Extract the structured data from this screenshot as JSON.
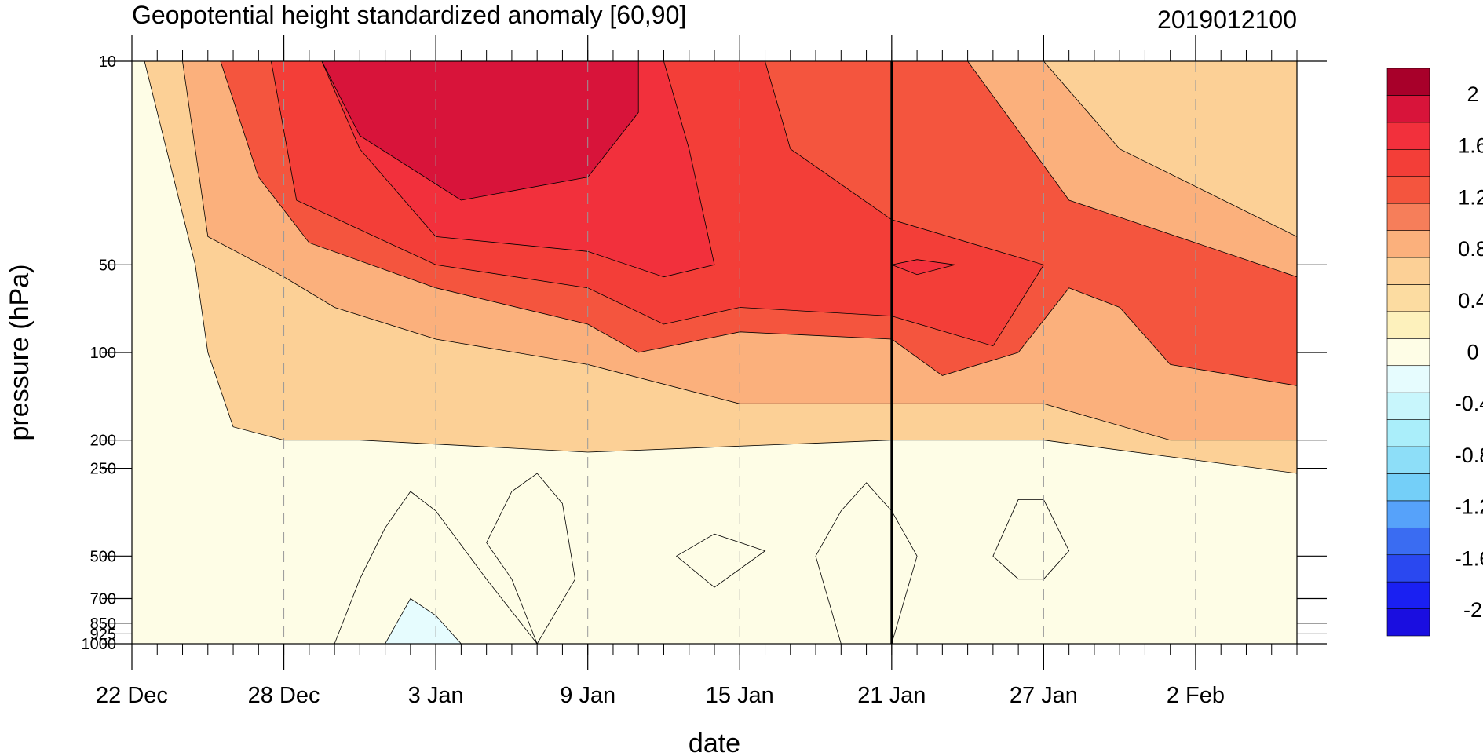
{
  "chart_data": {
    "type": "heatmap",
    "title": "Geopotential height standardized anomaly [60,90]",
    "right_title": "2019012100",
    "xlabel": "date",
    "ylabel": "pressure (hPa)",
    "y_scale": "log",
    "y_reversed": true,
    "ylim": [
      10,
      1000
    ],
    "x_start": "2018-12-22",
    "x_end": "2019-02-06",
    "x_ticks": [
      {
        "date": "2018-12-22",
        "label": "22 Dec"
      },
      {
        "date": "2018-12-28",
        "label": "28 Dec"
      },
      {
        "date": "2019-01-03",
        "label": "3 Jan"
      },
      {
        "date": "2019-01-09",
        "label": "9 Jan"
      },
      {
        "date": "2019-01-15",
        "label": "15 Jan"
      },
      {
        "date": "2019-01-21",
        "label": "21 Jan"
      },
      {
        "date": "2019-01-27",
        "label": "27 Jan"
      },
      {
        "date": "2019-02-02",
        "label": "2 Feb"
      }
    ],
    "y_ticks": [
      {
        "value": 10,
        "label": "10"
      },
      {
        "value": 50,
        "label": "50"
      },
      {
        "value": 100,
        "label": "100"
      },
      {
        "value": 200,
        "label": "200"
      },
      {
        "value": 250,
        "label": "250"
      },
      {
        "value": 500,
        "label": "500"
      },
      {
        "value": 700,
        "label": "700"
      },
      {
        "value": 850,
        "label": "850"
      },
      {
        "value": 925,
        "label": "925"
      },
      {
        "value": 1000,
        "label": "1000"
      }
    ],
    "analysis_date": "2019-01-21",
    "grid": {
      "vertical_dashed_at_major_ticks": true
    },
    "levels": [
      -2.2,
      -2,
      -1.8,
      -1.6,
      -1.4,
      -1.2,
      -1,
      -0.8,
      -0.6,
      -0.4,
      -0.2,
      0,
      0.2,
      0.4,
      0.6,
      0.8,
      1,
      1.2,
      1.4,
      1.6,
      1.8,
      2,
      2.2
    ],
    "colorbar_labels": [
      2,
      1.6,
      1.2,
      0.8,
      0.4,
      0,
      -0.4,
      -0.8,
      -1.2,
      -1.6,
      -2
    ],
    "colors": [
      "#1a0ee0",
      "#1a20f2",
      "#2a48f0",
      "#3a6cf2",
      "#56a2fa",
      "#74cff8",
      "#8ddef8",
      "#aaeefa",
      "#c8f6fc",
      "#e6fcfe",
      "#fefde6",
      "#fdf1bc",
      "#fcdca1",
      "#fcd096",
      "#fbb07c",
      "#f67e5a",
      "#f4553e",
      "#f33e38",
      "#f2303c",
      "#d8143a",
      "#a8002a"
    ],
    "contour_bands": [
      {
        "value": 0.5,
        "points": [
          [
            "2018-12-22",
            10
          ],
          [
            "2018-12-22.5",
            10
          ],
          [
            "2018-12-24.5",
            50
          ],
          [
            "2018-12-25",
            100
          ],
          [
            "2018-12-26",
            180
          ],
          [
            "2018-12-28",
            200
          ],
          [
            "2018-12-31",
            200
          ],
          [
            "2019-01-09",
            220
          ],
          [
            "2019-01-21",
            200
          ],
          [
            "2019-01-27",
            200
          ],
          [
            "2019-02-06",
            260
          ],
          [
            "2019-02-06",
            10
          ]
        ]
      },
      {
        "value": 0.7,
        "points": [
          [
            "2018-12-24",
            10
          ],
          [
            "2018-12-25",
            40
          ],
          [
            "2018-12-28",
            55
          ],
          [
            "2018-12-30",
            70
          ],
          [
            "2019-01-03",
            90
          ],
          [
            "2019-01-09",
            110
          ],
          [
            "2019-01-15",
            150
          ],
          [
            "2019-01-21",
            150
          ],
          [
            "2019-01-27",
            150
          ],
          [
            "2019-02-01",
            200
          ],
          [
            "2019-02-06",
            200
          ],
          [
            "2019-02-06",
            40
          ],
          [
            "2019-01-30",
            20
          ],
          [
            "2019-01-27",
            10
          ]
        ]
      },
      {
        "value": 1.0,
        "points": [
          [
            "2018-12-25.5",
            10
          ],
          [
            "2018-12-27",
            25
          ],
          [
            "2018-12-29",
            42
          ],
          [
            "2019-01-03",
            60
          ],
          [
            "2019-01-09",
            80
          ],
          [
            "2019-01-11",
            100
          ],
          [
            "2019-01-15",
            85
          ],
          [
            "2019-01-21",
            90
          ],
          [
            "2019-01-23",
            120
          ],
          [
            "2019-01-26",
            100
          ],
          [
            "2019-01-28",
            60
          ],
          [
            "2019-01-30",
            70
          ],
          [
            "2019-02-01",
            110
          ],
          [
            "2019-02-06",
            130
          ],
          [
            "2019-02-06",
            55
          ],
          [
            "2019-01-28",
            30
          ],
          [
            "2019-01-24",
            10
          ]
        ]
      },
      {
        "value": 1.3,
        "points": [
          [
            "2018-12-27.5",
            10
          ],
          [
            "2018-12-28.5",
            30
          ],
          [
            "2019-01-03",
            50
          ],
          [
            "2019-01-09",
            60
          ],
          [
            "2019-01-12",
            80
          ],
          [
            "2019-01-15",
            70
          ],
          [
            "2019-01-21",
            75
          ],
          [
            "2019-01-25",
            95
          ],
          [
            "2019-01-27",
            50
          ],
          [
            "2019-01-21",
            35
          ],
          [
            "2019-01-17",
            20
          ],
          [
            "2019-01-16",
            10
          ]
        ]
      },
      {
        "value": 1.5,
        "points": [
          [
            "2018-12-29.5",
            10
          ],
          [
            "2018-12-31",
            20
          ],
          [
            "2019-01-03",
            40
          ],
          [
            "2019-01-09",
            45
          ],
          [
            "2019-01-12",
            55
          ],
          [
            "2019-01-14",
            50
          ],
          [
            "2019-01-13",
            20
          ],
          [
            "2019-01-12",
            10
          ]
        ]
      },
      {
        "value": 1.7,
        "points": [
          [
            "2018-12-29.5",
            10
          ],
          [
            "2018-12-31",
            18
          ],
          [
            "2019-01-04",
            30
          ],
          [
            "2019-01-09",
            25
          ],
          [
            "2019-01-11",
            15
          ],
          [
            "2019-01-11",
            10
          ]
        ]
      },
      {
        "value": 1.5,
        "points": [
          [
            "2019-01-21",
            50
          ],
          [
            "2019-01-22",
            48
          ],
          [
            "2019-01-23.5",
            50
          ],
          [
            "2019-01-22",
            54
          ]
        ]
      },
      {
        "value": -0.1,
        "points": [
          [
            "2018-12-30",
            1000
          ],
          [
            "2018-12-31",
            600
          ],
          [
            "2019-01-01",
            400
          ],
          [
            "2019-01-02",
            300
          ],
          [
            "2019-01-03",
            350
          ],
          [
            "2019-01-05",
            600
          ],
          [
            "2019-01-07",
            1000
          ]
        ]
      },
      {
        "value": -0.1,
        "points": [
          [
            "2019-01-05",
            450
          ],
          [
            "2019-01-06",
            300
          ],
          [
            "2019-01-07",
            260
          ],
          [
            "2019-01-08",
            330
          ],
          [
            "2019-01-08.5",
            600
          ],
          [
            "2019-01-07",
            1000
          ],
          [
            "2019-01-06",
            600
          ]
        ]
      },
      {
        "value": -0.1,
        "points": [
          [
            "2019-01-12.5",
            500
          ],
          [
            "2019-01-14",
            420
          ],
          [
            "2019-01-16",
            480
          ],
          [
            "2019-01-14",
            640
          ]
        ]
      },
      {
        "value": -0.1,
        "points": [
          [
            "2019-01-18",
            500
          ],
          [
            "2019-01-19",
            350
          ],
          [
            "2019-01-20",
            280
          ],
          [
            "2019-01-21",
            350
          ],
          [
            "2019-01-22",
            500
          ],
          [
            "2019-01-21",
            1000
          ],
          [
            "2019-01-19",
            1000
          ]
        ]
      },
      {
        "value": -0.1,
        "points": [
          [
            "2019-01-25",
            500
          ],
          [
            "2019-01-26",
            320
          ],
          [
            "2019-01-27",
            320
          ],
          [
            "2019-01-28",
            480
          ],
          [
            "2019-01-27",
            600
          ],
          [
            "2019-01-26",
            600
          ]
        ]
      },
      {
        "value": -0.3,
        "points": [
          [
            "2019-01-01",
            1000
          ],
          [
            "2019-01-02",
            700
          ],
          [
            "2019-01-03",
            800
          ],
          [
            "2019-01-04",
            1000
          ]
        ]
      }
    ]
  }
}
